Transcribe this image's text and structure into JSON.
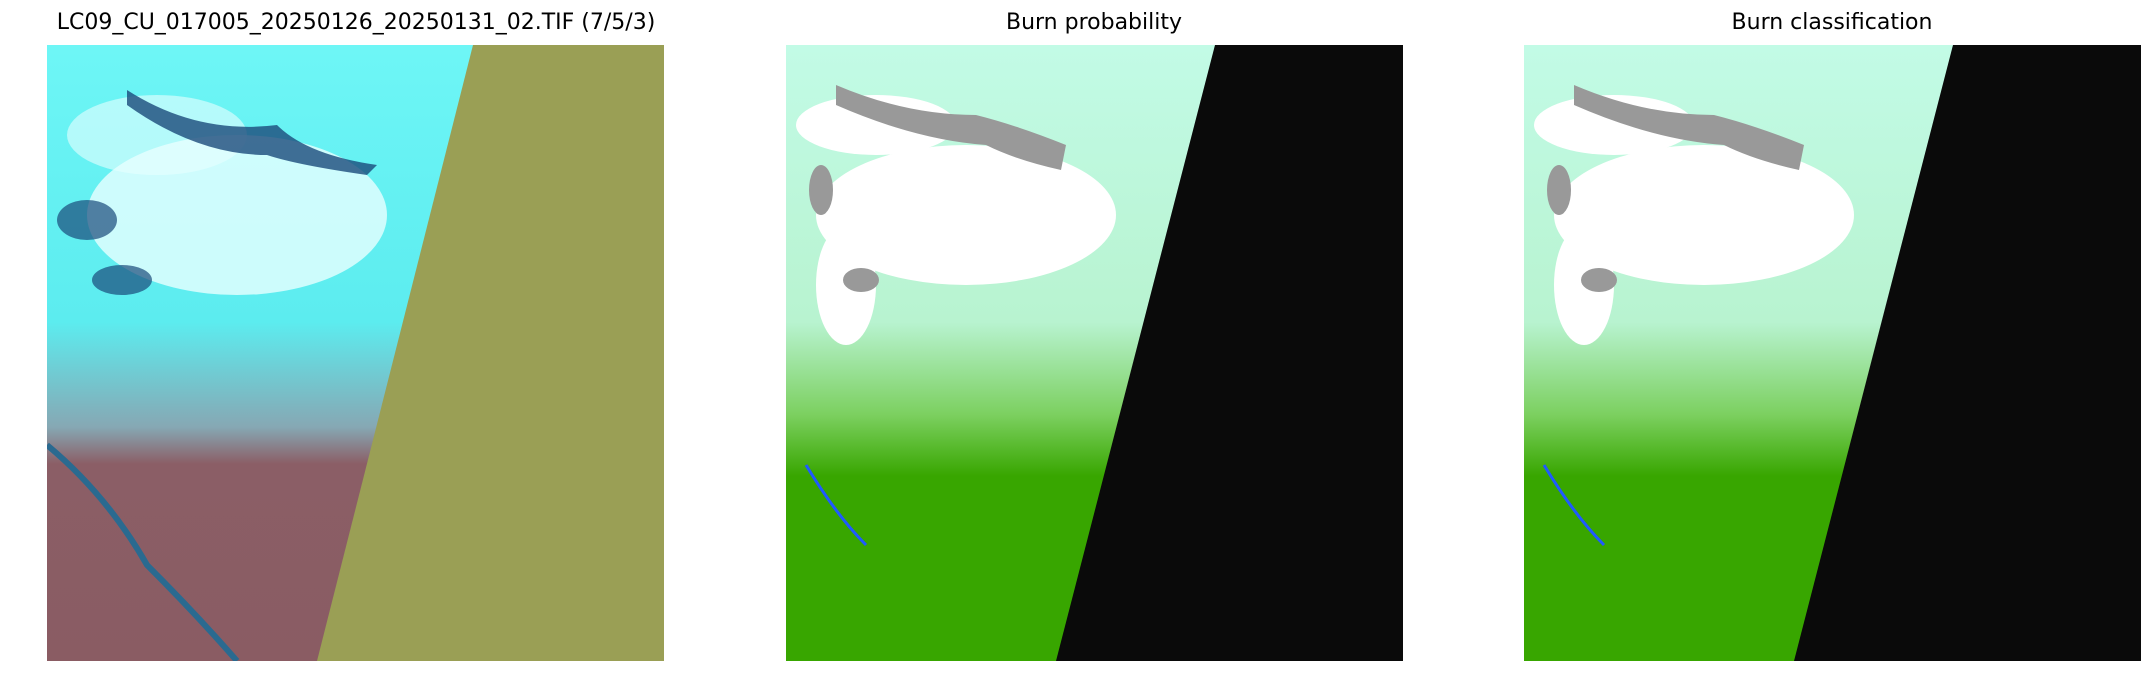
{
  "chart_data": [
    {
      "type": "image",
      "title": "LC09_CU_017005_20250126_20250131_02.TIF (7/5/3)",
      "colors": {
        "snow_cloud": "#5ff3f3",
        "vegetation": "#8a5a62",
        "nodata": "#9a9f55"
      }
    },
    {
      "type": "image",
      "title": "Burn probability",
      "colors": {
        "unburned_snow": "#c2fbe6",
        "cloud": "#ffffff",
        "cloud_shadow": "#999999",
        "burned": "#38a600",
        "water": "#1f5aff",
        "nodata": "#0a0a0a"
      }
    },
    {
      "type": "image",
      "title": "Burn classification",
      "colors": {
        "unburned_snow": "#c2fbe6",
        "cloud": "#ffffff",
        "cloud_shadow": "#999999",
        "burned": "#38a600",
        "water": "#1f5aff",
        "nodata": "#0a0a0a"
      }
    }
  ]
}
